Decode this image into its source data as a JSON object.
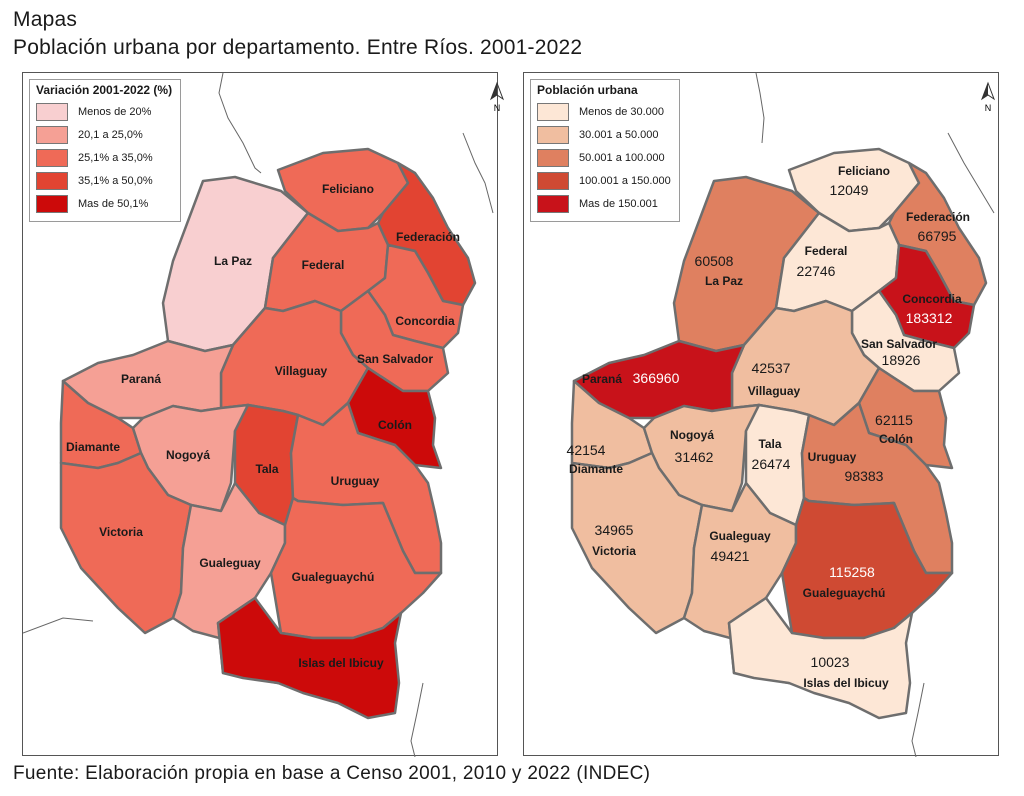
{
  "header": {
    "section": "Mapas",
    "title": "Población urbana por departamento. Entre Ríos. 2001-2022"
  },
  "source": "Fuente: Elaboración propia en base a Censo 2001, 2010 y 2022 (INDEC)",
  "north_label": "N",
  "colors": {
    "border": "#6e6e6e",
    "left_scale": [
      "#f8cfd0",
      "#f5a095",
      "#ef6a57",
      "#e24432",
      "#cc0a0a"
    ],
    "right_scale": [
      "#fde7d6",
      "#f0bea0",
      "#df8060",
      "#cf4a33",
      "#c8121a"
    ]
  },
  "left_map": {
    "legend_title": "Variación 2001-2022 (%)",
    "legend": [
      "Menos de 20%",
      "20,1 a 25,0%",
      "25,1% a 35,0%",
      "35,1% a 50,0%",
      "Mas de 50,1%"
    ],
    "departments": [
      {
        "name": "Feliciano",
        "class": 2
      },
      {
        "name": "Federación",
        "class": 3
      },
      {
        "name": "La Paz",
        "class": 0
      },
      {
        "name": "Federal",
        "class": 2
      },
      {
        "name": "Concordia",
        "class": 2
      },
      {
        "name": "San Salvador",
        "class": 2
      },
      {
        "name": "Villaguay",
        "class": 2
      },
      {
        "name": "Paraná",
        "class": 1
      },
      {
        "name": "Colón",
        "class": 4
      },
      {
        "name": "Diamante",
        "class": 2
      },
      {
        "name": "Nogoyá",
        "class": 1
      },
      {
        "name": "Tala",
        "class": 3
      },
      {
        "name": "Uruguay",
        "class": 2
      },
      {
        "name": "Victoria",
        "class": 2
      },
      {
        "name": "Gualeguay",
        "class": 1
      },
      {
        "name": "Gualeguaychú",
        "class": 2
      },
      {
        "name": "Islas del Ibicuy",
        "class": 4
      }
    ]
  },
  "right_map": {
    "legend_title": "Población urbana",
    "legend": [
      "Menos de 30.000",
      "30.001 a 50.000",
      "50.001 a 100.000",
      "100.001 a 150.000",
      "Mas de 150.001"
    ],
    "departments": [
      {
        "name": "Feliciano",
        "value": "12049",
        "class": 0
      },
      {
        "name": "Federación",
        "value": "66795",
        "class": 2
      },
      {
        "name": "La Paz",
        "value": "60508",
        "class": 2
      },
      {
        "name": "Federal",
        "value": "22746",
        "class": 0
      },
      {
        "name": "Concordia",
        "value": "183312",
        "class": 4
      },
      {
        "name": "San Salvador",
        "value": "18926",
        "class": 0
      },
      {
        "name": "Villaguay",
        "value": "42537",
        "class": 1
      },
      {
        "name": "Paraná",
        "value": "366960",
        "class": 4
      },
      {
        "name": "Colón",
        "value": "62115",
        "class": 2
      },
      {
        "name": "Diamante",
        "value": "42154",
        "class": 1
      },
      {
        "name": "Nogoyá",
        "value": "31462",
        "class": 1
      },
      {
        "name": "Tala",
        "value": "26474",
        "class": 0
      },
      {
        "name": "Uruguay",
        "value": "98383",
        "class": 2
      },
      {
        "name": "Victoria",
        "value": "34965",
        "class": 1
      },
      {
        "name": "Gualeguay",
        "value": "49421",
        "class": 1
      },
      {
        "name": "Gualeguaychú",
        "value": "115258",
        "class": 3
      },
      {
        "name": "Islas del Ibicuy",
        "value": "10023",
        "class": 0
      }
    ]
  }
}
